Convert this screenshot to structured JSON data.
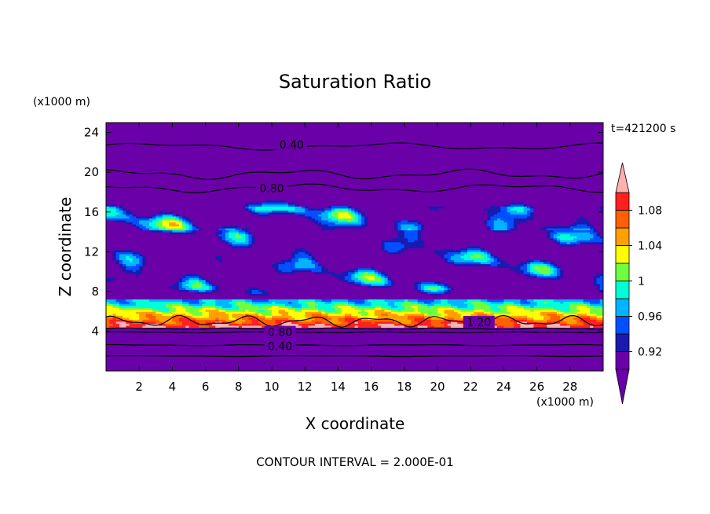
{
  "chart_data": {
    "type": "heatmap",
    "title": "Saturation Ratio",
    "time_label": "t=421200 s",
    "xlabel": "X coordinate",
    "ylabel": "Z coordinate",
    "x_unit": "(x1000 m)",
    "y_unit": "(x1000 m)",
    "xlim": [
      0,
      30
    ],
    "ylim": [
      0,
      25
    ],
    "x_ticks": [
      2,
      4,
      6,
      8,
      10,
      12,
      14,
      16,
      18,
      20,
      22,
      24,
      26,
      28
    ],
    "y_ticks": [
      4,
      8,
      12,
      16,
      20,
      24
    ],
    "footer": "CONTOUR INTERVAL = 2.000E-01",
    "colorbar": {
      "levels": [
        0.9,
        0.92,
        0.94,
        0.96,
        0.98,
        1.0,
        1.02,
        1.04,
        1.06,
        1.08,
        1.1
      ],
      "tick_labels": [
        {
          "value": 0.92,
          "label": "0.92"
        },
        {
          "value": 0.96,
          "label": "0.96"
        },
        {
          "value": 1.0,
          "label": "1"
        },
        {
          "value": 1.04,
          "label": "1.04"
        },
        {
          "value": 1.08,
          "label": "1.08"
        }
      ],
      "colors": [
        "#6a00a8",
        "#1a1ab0",
        "#0050ff",
        "#00b4ff",
        "#00ffd8",
        "#70ff40",
        "#ffff00",
        "#ffa000",
        "#ff6000",
        "#ff2020"
      ],
      "under_color": "#6a00a8",
      "over_color": "#ffb0b0"
    },
    "contour_labels": [
      {
        "x": 11.2,
        "z": 22.8,
        "label": "0.40"
      },
      {
        "x": 10.0,
        "z": 18.4,
        "label": "0.80"
      },
      {
        "x": 22.5,
        "z": 4.9,
        "label": "1.20"
      },
      {
        "x": 10.5,
        "z": 3.9,
        "label": "0.80"
      },
      {
        "x": 10.5,
        "z": 2.5,
        "label": "0.40"
      }
    ]
  }
}
